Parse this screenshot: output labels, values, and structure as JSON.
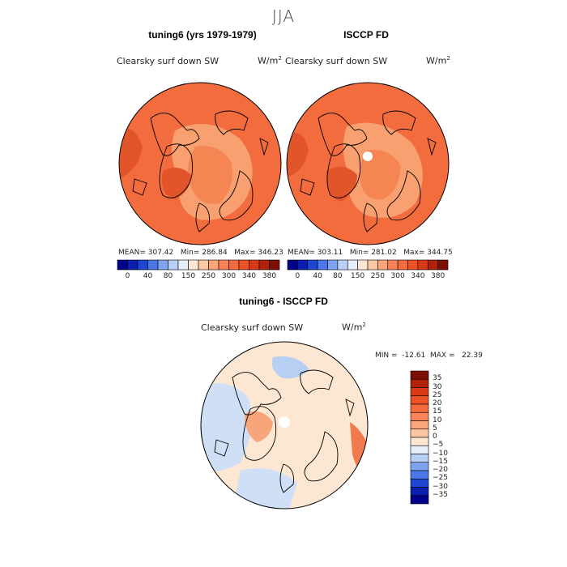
{
  "figure": {
    "title": "JJA"
  },
  "panels": [
    {
      "title": "tuning6 (yrs 1979-1979)",
      "variable": "Clearsky surf down SW",
      "units": "W/m",
      "units_exp": "2",
      "stats": "MEAN= 307.42   Min= 286.84   Max= 346.23"
    },
    {
      "title": "ISCCP FD",
      "variable": "Clearsky surf down SW",
      "units": "W/m",
      "units_exp": "2",
      "stats": "MEAN= 303.11   Min= 281.02   Max= 344.75"
    },
    {
      "title": "tuning6 - ISCCP FD",
      "variable": "Clearsky surf down SW",
      "units": "W/m",
      "units_exp": "2",
      "stats": "MIN =  -12.61  MAX =   22.39"
    }
  ],
  "colorbar_abs": {
    "ticks": [
      "0",
      "40",
      "80",
      "150",
      "250",
      "300",
      "340",
      "380"
    ],
    "colors": [
      "#00008b",
      "#0a1fb0",
      "#1e46d2",
      "#4a78e8",
      "#7ea4f0",
      "#b8d0f6",
      "#e6eef9",
      "#fde7d2",
      "#fcc8a4",
      "#fba57a",
      "#f98258",
      "#f36a3c",
      "#ec5226",
      "#d93a16",
      "#b0220a",
      "#7d0e02"
    ]
  },
  "colorbar_diff": {
    "ticks": [
      "35",
      "30",
      "25",
      "20",
      "15",
      "10",
      "5",
      "0",
      "−5",
      "−10",
      "−15",
      "−20",
      "−25",
      "−30",
      "−35"
    ],
    "colors": [
      "#7d0e02",
      "#b0220a",
      "#d93a16",
      "#ec5226",
      "#f36a3c",
      "#f98258",
      "#fba57a",
      "#fcc8a4",
      "#fde7d2",
      "#e6eef9",
      "#b8d0f6",
      "#7ea4f0",
      "#4a78e8",
      "#1e46d2",
      "#0a1fb0",
      "#00008b"
    ]
  },
  "map_colors": {
    "abs_base": "#f26c3e",
    "abs_light": "#f8a070",
    "abs_mid": "#f58654",
    "abs_dark": "#e2542a",
    "diff_base": "#fde7d2",
    "diff_blue": "#cfe0f6",
    "diff_blue2": "#b6cff2",
    "diff_orange": "#f9a57c",
    "diff_red": "#f2794e"
  }
}
